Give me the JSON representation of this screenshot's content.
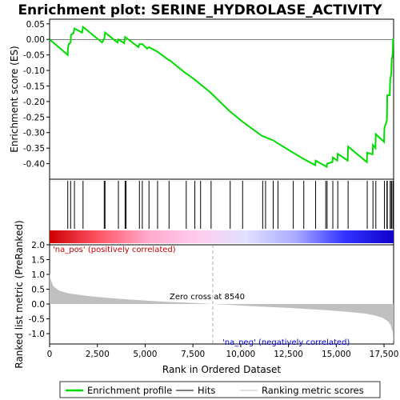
{
  "chart_data": {
    "type": "line",
    "title": "Enrichment plot: SERINE_HYDROLASE_ACTIVITY",
    "xlabel": "Rank in Ordered Dataset",
    "xlim": [
      0,
      18000
    ],
    "x_ticks": [
      0,
      2500,
      5000,
      7500,
      10000,
      12500,
      15000,
      17500
    ],
    "top_panel": {
      "ylabel": "Enrichment score (ES)",
      "ylim": [
        -0.45,
        0.065
      ],
      "y_ticks": [
        0.05,
        0.0,
        -0.05,
        -0.1,
        -0.15,
        -0.2,
        -0.25,
        -0.3,
        -0.35,
        -0.4
      ],
      "color": "#00dd00",
      "points": [
        [
          0,
          0.0
        ],
        [
          950,
          -0.05
        ],
        [
          960,
          -0.03
        ],
        [
          1000,
          -0.015
        ],
        [
          1100,
          -0.01
        ],
        [
          1120,
          0.015
        ],
        [
          1250,
          0.02
        ],
        [
          1300,
          0.035
        ],
        [
          1700,
          0.022
        ],
        [
          1750,
          0.04
        ],
        [
          2750,
          -0.01
        ],
        [
          2860,
          0.002
        ],
        [
          2900,
          0.022
        ],
        [
          3550,
          -0.01
        ],
        [
          3600,
          0.0
        ],
        [
          3900,
          -0.012
        ],
        [
          3950,
          0.008
        ],
        [
          4650,
          -0.025
        ],
        [
          4700,
          -0.015
        ],
        [
          4850,
          -0.015
        ],
        [
          5100,
          -0.03
        ],
        [
          5200,
          -0.025
        ],
        [
          5650,
          -0.04
        ],
        [
          6200,
          -0.065
        ],
        [
          6300,
          -0.068
        ],
        [
          7100,
          -0.108
        ],
        [
          7200,
          -0.112
        ],
        [
          7600,
          -0.13
        ],
        [
          7900,
          -0.145
        ],
        [
          8400,
          -0.17
        ],
        [
          9400,
          -0.23
        ],
        [
          10100,
          -0.265
        ],
        [
          11100,
          -0.31
        ],
        [
          11300,
          -0.315
        ],
        [
          11700,
          -0.325
        ],
        [
          11900,
          -0.333
        ],
        [
          12750,
          -0.365
        ],
        [
          13300,
          -0.385
        ],
        [
          13900,
          -0.405
        ],
        [
          13920,
          -0.39
        ],
        [
          14500,
          -0.41
        ],
        [
          14520,
          -0.4
        ],
        [
          14800,
          -0.395
        ],
        [
          14820,
          -0.38
        ],
        [
          15050,
          -0.39
        ],
        [
          15080,
          -0.368
        ],
        [
          15600,
          -0.39
        ],
        [
          15620,
          -0.345
        ],
        [
          16600,
          -0.395
        ],
        [
          16620,
          -0.365
        ],
        [
          16900,
          -0.37
        ],
        [
          16920,
          -0.34
        ],
        [
          17050,
          -0.35
        ],
        [
          17070,
          -0.305
        ],
        [
          17500,
          -0.33
        ],
        [
          17520,
          -0.285
        ],
        [
          17650,
          -0.26
        ],
        [
          17670,
          -0.18
        ],
        [
          17800,
          -0.18
        ],
        [
          17820,
          -0.13
        ],
        [
          17880,
          -0.11
        ],
        [
          17900,
          -0.065
        ],
        [
          17950,
          -0.05
        ],
        [
          17970,
          0.0
        ],
        [
          18000,
          0.002
        ]
      ]
    },
    "hits": [
      950,
      1100,
      1300,
      1750,
      2860,
      2900,
      3600,
      3950,
      4000,
      4700,
      4850,
      5200,
      5650,
      6250,
      7150,
      7600,
      7900,
      8450,
      9450,
      10100,
      11150,
      11300,
      11700,
      11950,
      12750,
      13300,
      13920,
      14450,
      14520,
      14820,
      15080,
      15620,
      16620,
      16920,
      17070,
      17520,
      17650,
      17670,
      17820,
      17880,
      17900,
      17970
    ],
    "middle_bar": {
      "color_stops": [
        "#cc0000",
        "#ff5566",
        "#ffaacc",
        "#ffccee",
        "#e0e0ff",
        "#aaaaff",
        "#3333ff",
        "#1100cc"
      ]
    },
    "bottom_panel": {
      "ylabel": "Ranked list metric (PreRanked)",
      "ylim": [
        -1.35,
        2.0
      ],
      "y_ticks": [
        2.0,
        1.5,
        1.0,
        0.5,
        0.0,
        -0.5,
        -1.0
      ],
      "color": "#c0c0c0",
      "curve": [
        [
          0,
          1.05
        ],
        [
          50,
          0.85
        ],
        [
          200,
          0.6
        ],
        [
          500,
          0.45
        ],
        [
          1000,
          0.36
        ],
        [
          2000,
          0.27
        ],
        [
          3000,
          0.21
        ],
        [
          4000,
          0.16
        ],
        [
          5000,
          0.12
        ],
        [
          6000,
          0.08
        ],
        [
          7000,
          0.05
        ],
        [
          8000,
          0.02
        ],
        [
          8540,
          0.0
        ],
        [
          9500,
          -0.03
        ],
        [
          10500,
          -0.07
        ],
        [
          11500,
          -0.1
        ],
        [
          12500,
          -0.13
        ],
        [
          13500,
          -0.17
        ],
        [
          14500,
          -0.21
        ],
        [
          15500,
          -0.26
        ],
        [
          16500,
          -0.32
        ],
        [
          17000,
          -0.38
        ],
        [
          17400,
          -0.46
        ],
        [
          17700,
          -0.58
        ],
        [
          17850,
          -0.72
        ],
        [
          17950,
          -0.95
        ],
        [
          18000,
          -1.35
        ]
      ],
      "zero_cross_label": "Zero cross at 8540",
      "zero_cross": 8540,
      "pos_label": "'na_pos' (positively correlated)",
      "neg_label": "'na_neg' (negatively correlated)",
      "pos_color": "#cc0000",
      "neg_color": "#0000cc"
    },
    "legend": {
      "items": [
        "Enrichment profile",
        "Hits",
        "Ranking metric scores"
      ],
      "colors": [
        "#00dd00",
        "#000000",
        "#c0c0c0"
      ]
    }
  }
}
